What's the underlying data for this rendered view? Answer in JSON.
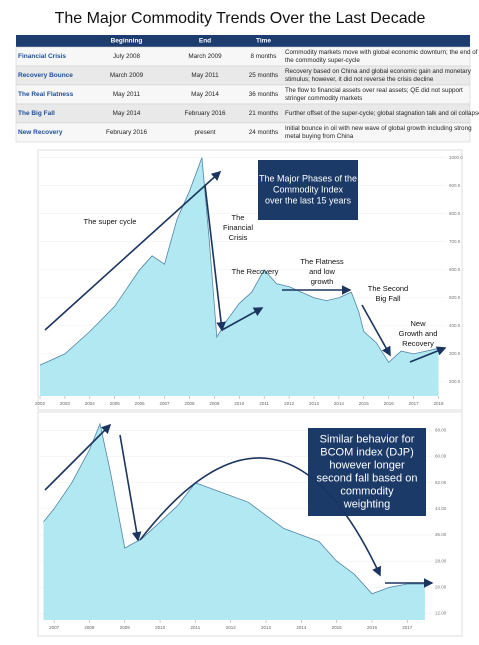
{
  "title": "The Major Commodity Trends Over the Last Decade",
  "table": {
    "header": [
      "Beginning",
      "End",
      "Time"
    ],
    "rows": [
      [
        "Financial Crisis",
        "July 2008",
        "March 2009",
        "8 months",
        [
          "Commodity markets move with global economic downturn; the end of",
          "the commodity super-cycle"
        ]
      ],
      [
        "Recovery Bounce",
        "March 2009",
        "May 2011",
        "25 months",
        [
          "Recovery based on China and global economic gain and monetary",
          "stimulus; however, it did not reverse the crisis decline"
        ]
      ],
      [
        "The Real Flatness",
        "May 2011",
        "May 2014",
        "36 months",
        [
          "The flow to financial assets over real assets; QE did not support",
          "stringer commodity markets"
        ]
      ],
      [
        "The Big Fall",
        "May 2014",
        "February 2016",
        "21 months",
        [
          "Further offset of the super-cycle; global stagnation talk and oil collapse"
        ]
      ],
      [
        "New Recovery",
        "February 2016",
        "present",
        "24 months",
        [
          "Initial bounce in oil with new wave of global growth including strong",
          "metal buying from China"
        ]
      ]
    ]
  },
  "chart_data": [
    {
      "type": "area",
      "color": "#a4e4ee",
      "line_color": "#4f86a8",
      "x": [
        2002,
        2003,
        2004,
        2005,
        2006,
        2006.5,
        2007,
        2007.5,
        2008,
        2008.5,
        2008.8,
        2009.1,
        2009.5,
        2010,
        2010.5,
        2011,
        2011.5,
        2012,
        2012.5,
        2013,
        2013.5,
        2014,
        2014.5,
        2014.8,
        2015,
        2015.5,
        2016,
        2016.5,
        2017,
        2017.5,
        2018
      ],
      "values": [
        260,
        300,
        380,
        470,
        600,
        650,
        620,
        780,
        880,
        1000,
        700,
        360,
        420,
        480,
        520,
        600,
        550,
        540,
        520,
        500,
        490,
        500,
        520,
        450,
        380,
        340,
        270,
        310,
        300,
        310,
        320
      ],
      "xlim": [
        2002,
        2018.3
      ],
      "xticks": [
        2002,
        2003,
        2004,
        2005,
        2006,
        2007,
        2008,
        2009,
        2010,
        2011,
        2012,
        2013,
        2014,
        2015,
        2016,
        2017,
        2018
      ],
      "ylim": [
        150,
        1020
      ],
      "yticks": [
        {
          "value": 200,
          "label": "200.0"
        },
        {
          "value": 300,
          "label": "300.0"
        },
        {
          "value": 400,
          "label": "400.0"
        },
        {
          "value": 500,
          "label": "500.0"
        },
        {
          "value": 600,
          "label": "600.0"
        },
        {
          "value": 700,
          "label": "700.0"
        },
        {
          "value": 800,
          "label": "800.0"
        },
        {
          "value": 900,
          "label": "900.0"
        },
        {
          "value": 1000,
          "label": "1000.0"
        }
      ],
      "box": [
        "The Major Phases of the",
        "Commodity Index",
        "over the last 15 years"
      ],
      "annotations": [
        [
          "The super cycle"
        ],
        [
          "The",
          "Financial",
          "Crisis"
        ],
        [
          "The Recovery"
        ],
        [
          "The Flatness",
          "and low",
          "growth"
        ],
        [
          "The Second",
          "Big Fall"
        ],
        [
          "New",
          "Growth and",
          "Recovery"
        ]
      ]
    },
    {
      "type": "area",
      "color": "#a4e4ee",
      "line_color": "#4f86a8",
      "x": [
        2006.7,
        2007,
        2007.5,
        2008,
        2008.3,
        2008.6,
        2009,
        2009.5,
        2010,
        2010.5,
        2011,
        2011.5,
        2012,
        2012.5,
        2013,
        2013.5,
        2014,
        2014.5,
        2015,
        2015.5,
        2016,
        2016.5,
        2017,
        2017.5
      ],
      "values": [
        40,
        44,
        52,
        62,
        70,
        55,
        32,
        35,
        40,
        45,
        52,
        50,
        48,
        46,
        42,
        38,
        36,
        34,
        28,
        24,
        18,
        20,
        21,
        21
      ],
      "xlim": [
        2006.6,
        2017.7
      ],
      "xticks": [
        2007,
        2008,
        2009,
        2010,
        2011,
        2012,
        2013,
        2014,
        2015,
        2016,
        2017
      ],
      "ylim": [
        10,
        73
      ],
      "yticks": [
        {
          "value": 12,
          "label": "12.00"
        },
        {
          "value": 20,
          "label": "20.00"
        },
        {
          "value": 28,
          "label": "28.00"
        },
        {
          "value": 36,
          "label": "36.00"
        },
        {
          "value": 44,
          "label": "44.00"
        },
        {
          "value": 52,
          "label": "52.00"
        },
        {
          "value": 60,
          "label": "60.00"
        },
        {
          "value": 68,
          "label": "68.00"
        }
      ],
      "box": [
        "Similar behavior for",
        "BCOM index (DJP)",
        "however  longer",
        "second fall based on",
        "commodity",
        "weighting"
      ]
    }
  ]
}
